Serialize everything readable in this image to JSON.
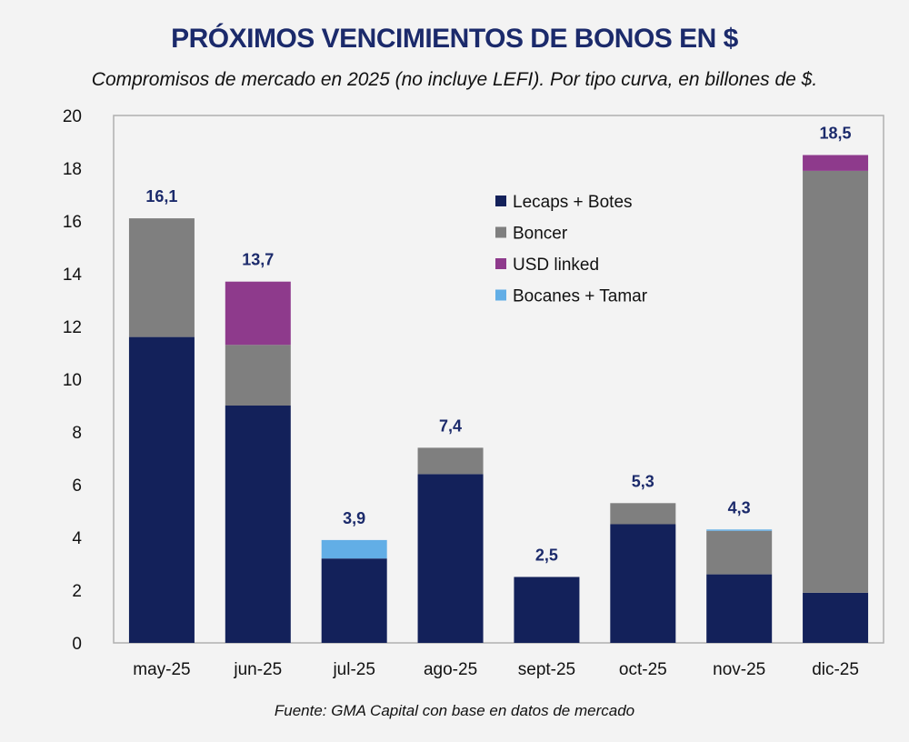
{
  "chart_data": {
    "type": "bar",
    "stacked": true,
    "title": "PRÓXIMOS VENCIMIENTOS DE BONOS EN $",
    "subtitle": "Compromisos de mercado en 2025 (no incluye LEFI). Por tipo curva, en billones de $.",
    "source": "Fuente: GMA Capital con base en datos de mercado",
    "xlabel": "",
    "ylabel": "",
    "ylim": [
      0,
      20
    ],
    "yticks": [
      0,
      2,
      4,
      6,
      8,
      10,
      12,
      14,
      16,
      18,
      20
    ],
    "grid": false,
    "legend_position": "top-center",
    "categories": [
      "may-25",
      "jun-25",
      "jul-25",
      "ago-25",
      "sept-25",
      "oct-25",
      "nov-25",
      "dic-25"
    ],
    "series": [
      {
        "name": "Lecaps + Botes",
        "color": "#13215a",
        "values": [
          11.6,
          9.0,
          3.2,
          6.4,
          2.5,
          4.5,
          2.6,
          1.9
        ]
      },
      {
        "name": "Boncer",
        "color": "#7f7f7f",
        "values": [
          4.5,
          2.3,
          0.0,
          1.0,
          0.0,
          0.8,
          1.65,
          16.0
        ]
      },
      {
        "name": "USD linked",
        "color": "#8e3a8c",
        "values": [
          0.0,
          2.4,
          0.0,
          0.0,
          0.0,
          0.0,
          0.0,
          0.6
        ]
      },
      {
        "name": "Bocanes + Tamar",
        "color": "#62aee6",
        "values": [
          0.0,
          0.0,
          0.7,
          0.0,
          0.0,
          0.0,
          0.05,
          0.0
        ]
      }
    ],
    "totals": [
      16.1,
      13.7,
      3.9,
      7.4,
      2.5,
      5.3,
      4.3,
      18.5
    ],
    "total_labels": [
      "16,1",
      "13,7",
      "3,9",
      "7,4",
      "2,5",
      "5,3",
      "4,3",
      "18,5"
    ]
  }
}
